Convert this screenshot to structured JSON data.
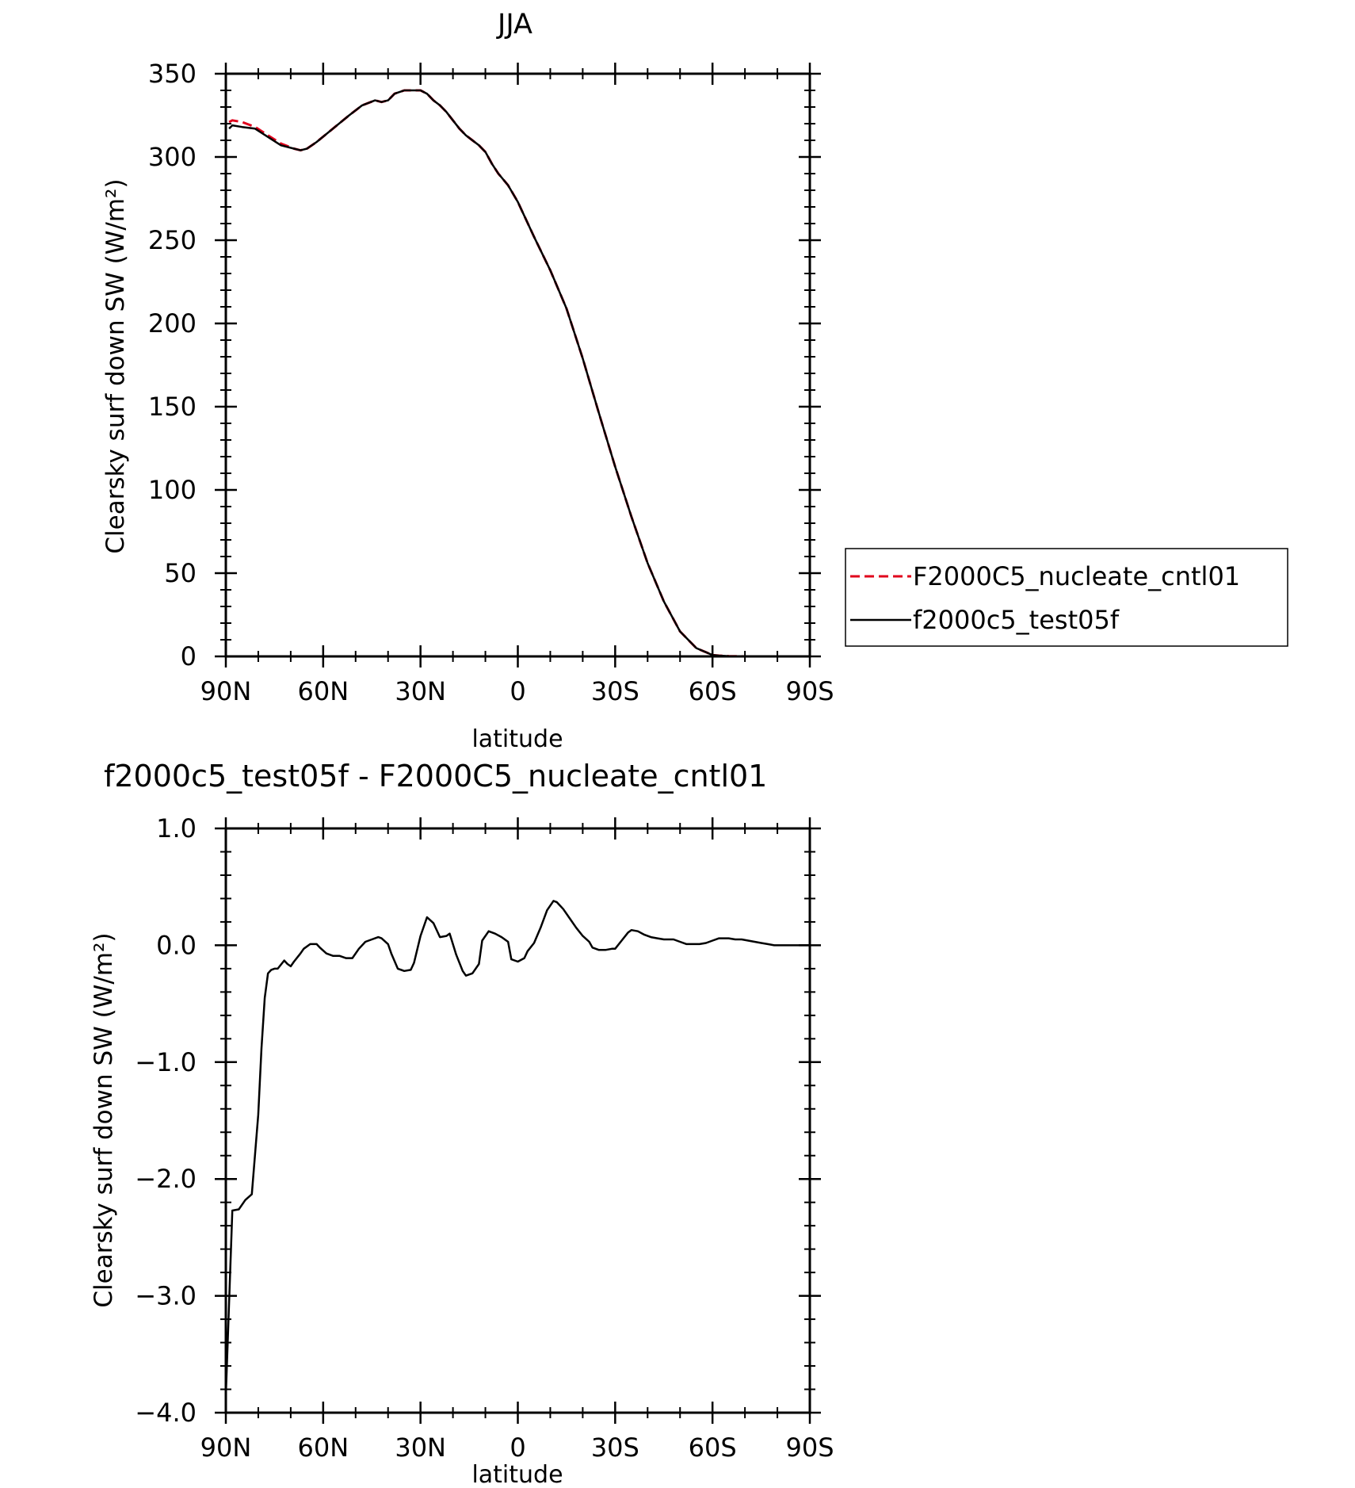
{
  "chart_data": [
    {
      "type": "line",
      "title": "JJA",
      "xlabel": "latitude",
      "ylabel": "Clearsky surf down SW (W/m²)",
      "xlim": [
        90,
        -90
      ],
      "ylim": [
        0,
        350
      ],
      "xticks": [
        90,
        60,
        30,
        0,
        -30,
        -60,
        -90
      ],
      "xtick_labels": [
        "90N",
        "60N",
        "30N",
        "0",
        "30S",
        "60S",
        "90S"
      ],
      "yticks": [
        0,
        50,
        100,
        150,
        200,
        250,
        300,
        350
      ],
      "ytick_labels": [
        "0",
        "50",
        "100",
        "150",
        "200",
        "250",
        "300",
        "350"
      ],
      "legend_position": "right",
      "series": [
        {
          "name": "F2000C5_nucleate_cntl01",
          "color": "#e0001b",
          "dash": "dashed",
          "x": [
            89,
            88,
            85,
            81,
            77,
            73,
            69,
            67,
            65,
            62,
            57,
            52,
            48,
            44,
            42,
            40,
            38,
            35,
            33,
            31,
            30,
            28,
            26,
            24,
            22,
            20,
            18,
            16,
            14,
            12,
            10,
            8,
            6,
            3,
            0,
            -5,
            -10,
            -15,
            -20,
            -25,
            -30,
            -35,
            -40,
            -45,
            -50,
            -55,
            -60,
            -62,
            -65,
            -70,
            -74,
            -77,
            -80,
            -85,
            -90
          ],
          "y": [
            321,
            322,
            321,
            318,
            313,
            308,
            305,
            304,
            305,
            309,
            317,
            325,
            331,
            334,
            333,
            334,
            338,
            340,
            340,
            340,
            340,
            338,
            334,
            331,
            327,
            322,
            317,
            313,
            310,
            307,
            303,
            296,
            290,
            283,
            273,
            252,
            232,
            209,
            179,
            146,
            114,
            84,
            56,
            33,
            15,
            5,
            0.8,
            0.5,
            0.2,
            0,
            0,
            0,
            0,
            0,
            0
          ]
        },
        {
          "name": "f2000c5_test05f",
          "color": "#000000",
          "dash": "solid",
          "x": [
            89,
            88,
            85,
            81,
            77,
            73,
            69,
            67,
            65,
            62,
            57,
            52,
            48,
            44,
            42,
            40,
            38,
            35,
            33,
            31,
            30,
            28,
            26,
            24,
            22,
            20,
            18,
            16,
            14,
            12,
            10,
            8,
            6,
            3,
            0,
            -5,
            -10,
            -15,
            -20,
            -25,
            -30,
            -35,
            -40,
            -45,
            -50,
            -55,
            -60,
            -62,
            -65,
            -70,
            -74,
            -77,
            -80,
            -85,
            -90
          ],
          "y": [
            317,
            319,
            318,
            317,
            312,
            307,
            305,
            304,
            305,
            309,
            317,
            325,
            331,
            334,
            333,
            334,
            338,
            340,
            340,
            340,
            340,
            338,
            334,
            331,
            327,
            322,
            317,
            313,
            310,
            307,
            303,
            296,
            290,
            283,
            273,
            252,
            232,
            209,
            179,
            146,
            114,
            84,
            56,
            33,
            15,
            5,
            0.8,
            0.5,
            0.2,
            0,
            0,
            0,
            0,
            0,
            0
          ]
        }
      ]
    },
    {
      "type": "line",
      "title": "f2000c5_test05f - F2000C5_nucleate_cntl01",
      "xlabel": "latitude",
      "ylabel": "Clearsky surf down SW (W/m²)",
      "xlim": [
        90,
        -90
      ],
      "ylim": [
        -4.0,
        1.0
      ],
      "xticks": [
        90,
        60,
        30,
        0,
        -30,
        -60,
        -90
      ],
      "xtick_labels": [
        "90N",
        "60N",
        "30N",
        "0",
        "30S",
        "60S",
        "90S"
      ],
      "yticks": [
        1.0,
        0.0,
        -1.0,
        -2.0,
        -3.0,
        -4.0
      ],
      "ytick_labels": [
        "1.0",
        "0.0",
        "−1.0",
        "−2.0",
        "−3.0",
        "−4.0"
      ],
      "series": [
        {
          "color": "#000000",
          "dash": "solid",
          "x": [
            90,
            88,
            86,
            84,
            82,
            80,
            79,
            78,
            77,
            76,
            75,
            74,
            72,
            71,
            70,
            69,
            67,
            66,
            64,
            62,
            61,
            59,
            57,
            55,
            53,
            51,
            49,
            47,
            45,
            43,
            42,
            40,
            39,
            37,
            35,
            33,
            32,
            30,
            28,
            26,
            24,
            22,
            21,
            19,
            17,
            16,
            14,
            12,
            11,
            9,
            7,
            5,
            3,
            2,
            0,
            -2,
            -3,
            -5,
            -7,
            -9,
            -11,
            -12,
            -14,
            -16,
            -18,
            -20,
            -22,
            -23,
            -25,
            -27,
            -29,
            -30,
            -32,
            -34,
            -35,
            -37,
            -39,
            -41,
            -43,
            -45,
            -47,
            -48,
            -50,
            -52,
            -54,
            -56,
            -58,
            -60,
            -62,
            -63,
            -65,
            -67,
            -69,
            -71,
            -73,
            -75,
            -77,
            -79,
            -81,
            -83,
            -85,
            -87,
            -90
          ],
          "y": [
            -3.85,
            -2.27,
            -2.26,
            -2.18,
            -2.13,
            -1.45,
            -0.88,
            -0.45,
            -0.24,
            -0.21,
            -0.2,
            -0.2,
            -0.13,
            -0.16,
            -0.18,
            -0.14,
            -0.07,
            -0.03,
            0.01,
            0.01,
            -0.02,
            -0.07,
            -0.09,
            -0.09,
            -0.11,
            -0.11,
            -0.03,
            0.03,
            0.05,
            0.07,
            0.06,
            0.01,
            -0.07,
            -0.2,
            -0.22,
            -0.21,
            -0.15,
            0.08,
            0.24,
            0.19,
            0.07,
            0.08,
            0.1,
            -0.08,
            -0.22,
            -0.26,
            -0.24,
            -0.16,
            0.04,
            0.12,
            0.1,
            0.07,
            0.03,
            -0.12,
            -0.14,
            -0.11,
            -0.05,
            0.02,
            0.15,
            0.3,
            0.38,
            0.37,
            0.31,
            0.23,
            0.15,
            0.08,
            0.03,
            -0.02,
            -0.04,
            -0.04,
            -0.03,
            -0.03,
            0.04,
            0.11,
            0.13,
            0.12,
            0.09,
            0.07,
            0.06,
            0.05,
            0.05,
            0.05,
            0.03,
            0.01,
            0.01,
            0.01,
            0.02,
            0.04,
            0.06,
            0.06,
            0.06,
            0.05,
            0.05,
            0.04,
            0.03,
            0.02,
            0.01,
            0.0,
            0.0,
            0.0,
            0.0,
            0.0,
            0.0
          ]
        }
      ]
    }
  ]
}
